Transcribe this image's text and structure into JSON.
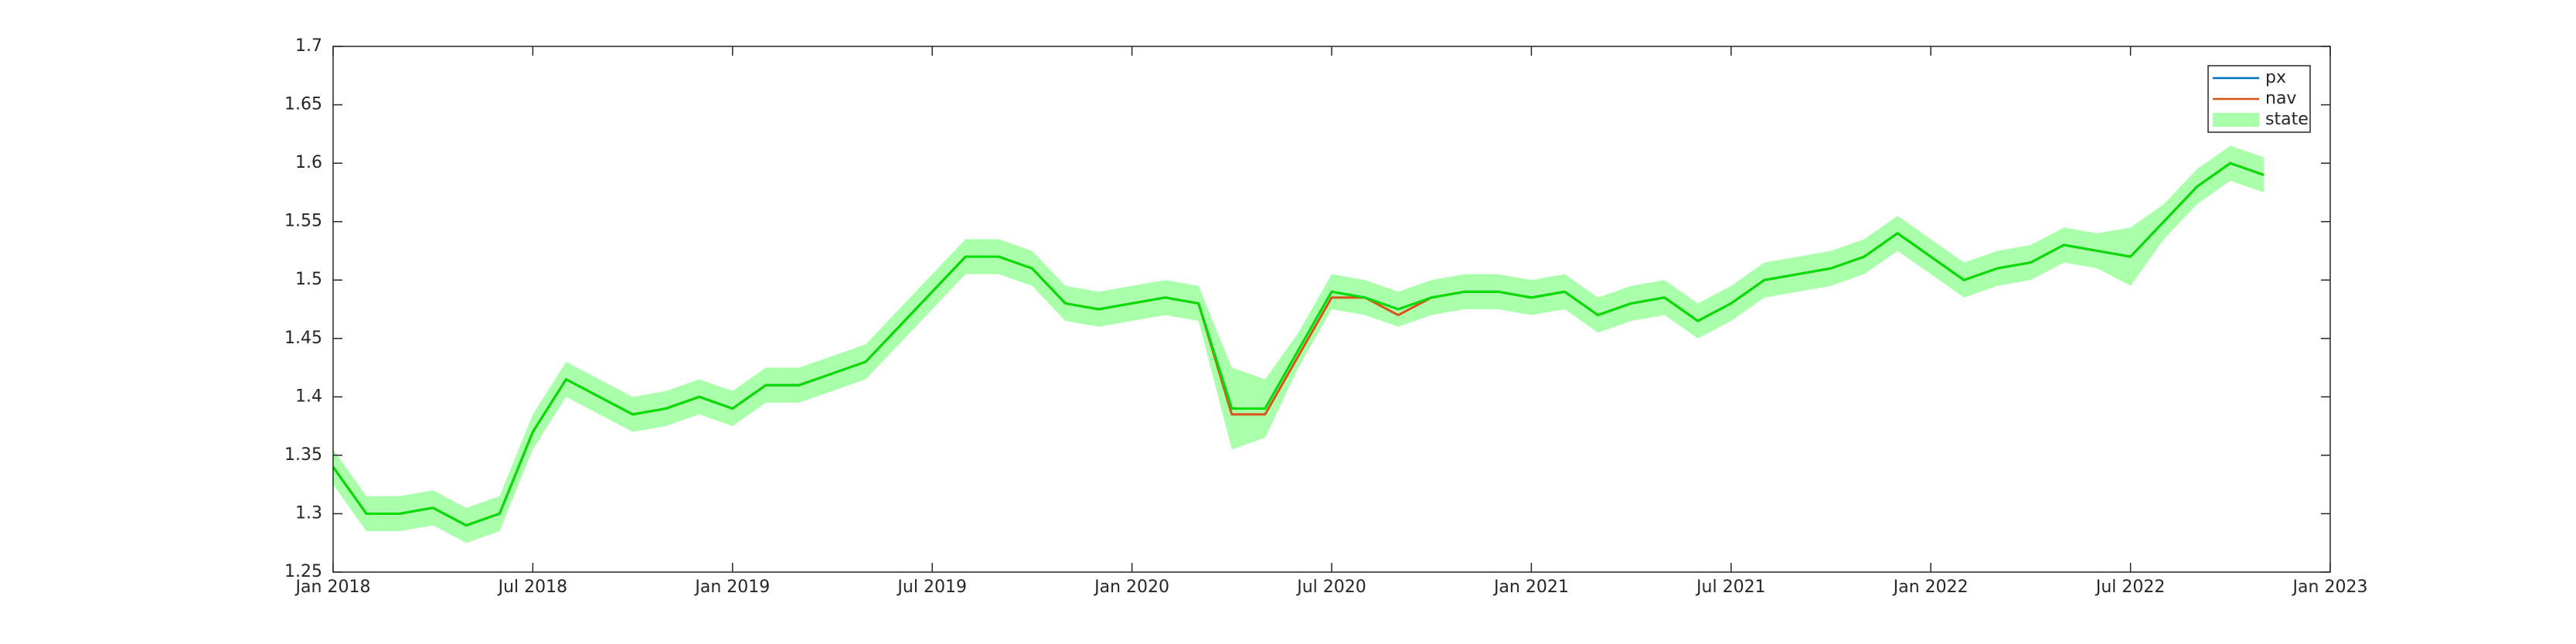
{
  "chart_data": {
    "type": "line",
    "x": [
      "2018-01",
      "2018-02",
      "2018-03",
      "2018-04",
      "2018-05",
      "2018-06",
      "2018-07",
      "2018-08",
      "2018-09",
      "2018-10",
      "2018-11",
      "2018-12",
      "2019-01",
      "2019-02",
      "2019-03",
      "2019-04",
      "2019-05",
      "2019-06",
      "2019-07",
      "2019-08",
      "2019-09",
      "2019-10",
      "2019-11",
      "2019-12",
      "2020-01",
      "2020-02",
      "2020-03",
      "2020-04",
      "2020-05",
      "2020-06",
      "2020-07",
      "2020-08",
      "2020-09",
      "2020-10",
      "2020-11",
      "2020-12",
      "2021-01",
      "2021-02",
      "2021-03",
      "2021-04",
      "2021-05",
      "2021-06",
      "2021-07",
      "2021-08",
      "2021-09",
      "2021-10",
      "2021-11",
      "2021-12",
      "2022-01",
      "2022-02",
      "2022-03",
      "2022-04",
      "2022-05",
      "2022-06",
      "2022-07",
      "2022-08",
      "2022-09",
      "2022-10",
      "2022-11"
    ],
    "series": [
      {
        "name": "px",
        "color": "#0072bd",
        "values": [
          1.34,
          1.3,
          1.3,
          1.305,
          1.29,
          1.3,
          1.37,
          1.415,
          1.4,
          1.385,
          1.39,
          1.4,
          1.39,
          1.41,
          1.41,
          1.42,
          1.43,
          1.46,
          1.49,
          1.52,
          1.52,
          1.51,
          1.48,
          1.475,
          1.48,
          1.485,
          1.48,
          1.39,
          1.39,
          1.44,
          1.49,
          1.485,
          1.475,
          1.485,
          1.49,
          1.49,
          1.485,
          1.49,
          1.47,
          1.48,
          1.485,
          1.465,
          1.48,
          1.5,
          1.505,
          1.51,
          1.52,
          1.54,
          1.52,
          1.5,
          1.51,
          1.515,
          1.53,
          1.525,
          1.52,
          1.55,
          1.58,
          1.6,
          1.59
        ]
      },
      {
        "name": "nav",
        "color": "#d95319",
        "values": [
          1.34,
          1.3,
          1.3,
          1.305,
          1.29,
          1.3,
          1.37,
          1.415,
          1.4,
          1.385,
          1.39,
          1.4,
          1.39,
          1.41,
          1.41,
          1.42,
          1.43,
          1.46,
          1.49,
          1.52,
          1.52,
          1.51,
          1.48,
          1.475,
          1.48,
          1.485,
          1.48,
          1.385,
          1.385,
          1.435,
          1.485,
          1.485,
          1.47,
          1.485,
          1.49,
          1.49,
          1.485,
          1.49,
          1.47,
          1.48,
          1.485,
          1.465,
          1.48,
          1.5,
          1.505,
          1.51,
          1.52,
          1.54,
          1.52,
          1.5,
          1.51,
          1.515,
          1.53,
          1.525,
          1.52,
          1.55,
          1.58,
          1.6,
          1.59
        ]
      },
      {
        "name": "state",
        "color": "#00e000",
        "fill": "#aaffaa",
        "values": [
          1.34,
          1.3,
          1.3,
          1.305,
          1.29,
          1.3,
          1.37,
          1.415,
          1.4,
          1.385,
          1.39,
          1.4,
          1.39,
          1.41,
          1.41,
          1.42,
          1.43,
          1.46,
          1.49,
          1.52,
          1.52,
          1.51,
          1.48,
          1.475,
          1.48,
          1.485,
          1.48,
          1.39,
          1.39,
          1.44,
          1.49,
          1.485,
          1.475,
          1.485,
          1.49,
          1.49,
          1.485,
          1.49,
          1.47,
          1.48,
          1.485,
          1.465,
          1.48,
          1.5,
          1.505,
          1.51,
          1.52,
          1.54,
          1.52,
          1.5,
          1.51,
          1.515,
          1.53,
          1.525,
          1.52,
          1.55,
          1.58,
          1.6,
          1.59
        ],
        "lower": [
          1.325,
          1.285,
          1.285,
          1.29,
          1.275,
          1.285,
          1.355,
          1.4,
          1.385,
          1.37,
          1.375,
          1.385,
          1.375,
          1.395,
          1.395,
          1.405,
          1.415,
          1.445,
          1.475,
          1.505,
          1.505,
          1.495,
          1.465,
          1.46,
          1.465,
          1.47,
          1.465,
          1.355,
          1.365,
          1.425,
          1.475,
          1.47,
          1.46,
          1.47,
          1.475,
          1.475,
          1.47,
          1.475,
          1.455,
          1.465,
          1.47,
          1.45,
          1.465,
          1.485,
          1.49,
          1.495,
          1.505,
          1.525,
          1.505,
          1.485,
          1.495,
          1.5,
          1.515,
          1.51,
          1.495,
          1.535,
          1.565,
          1.585,
          1.575
        ],
        "upper": [
          1.355,
          1.315,
          1.315,
          1.32,
          1.305,
          1.315,
          1.385,
          1.43,
          1.415,
          1.4,
          1.405,
          1.415,
          1.405,
          1.425,
          1.425,
          1.435,
          1.445,
          1.475,
          1.505,
          1.535,
          1.535,
          1.525,
          1.495,
          1.49,
          1.495,
          1.5,
          1.495,
          1.425,
          1.415,
          1.455,
          1.505,
          1.5,
          1.49,
          1.5,
          1.505,
          1.505,
          1.5,
          1.505,
          1.485,
          1.495,
          1.5,
          1.48,
          1.495,
          1.515,
          1.52,
          1.525,
          1.535,
          1.555,
          1.535,
          1.515,
          1.525,
          1.53,
          1.545,
          1.54,
          1.545,
          1.565,
          1.595,
          1.615,
          1.605
        ]
      }
    ],
    "xlim": [
      "2018-01",
      "2023-01"
    ],
    "xticks": [
      {
        "value": "2018-01",
        "label": "Jan 2018"
      },
      {
        "value": "2018-07",
        "label": "Jul 2018"
      },
      {
        "value": "2019-01",
        "label": "Jan 2019"
      },
      {
        "value": "2019-07",
        "label": "Jul 2019"
      },
      {
        "value": "2020-01",
        "label": "Jan 2020"
      },
      {
        "value": "2020-07",
        "label": "Jul 2020"
      },
      {
        "value": "2021-01",
        "label": "Jan 2021"
      },
      {
        "value": "2021-07",
        "label": "Jul 2021"
      },
      {
        "value": "2022-01",
        "label": "Jan 2022"
      },
      {
        "value": "2022-07",
        "label": "Jul 2022"
      },
      {
        "value": "2023-01",
        "label": "Jan 2023"
      }
    ],
    "ylim": [
      1.25,
      1.7
    ],
    "yticks": [
      1.25,
      1.3,
      1.35,
      1.4,
      1.45,
      1.5,
      1.55,
      1.6,
      1.65,
      1.7
    ],
    "legend": "northeast"
  }
}
